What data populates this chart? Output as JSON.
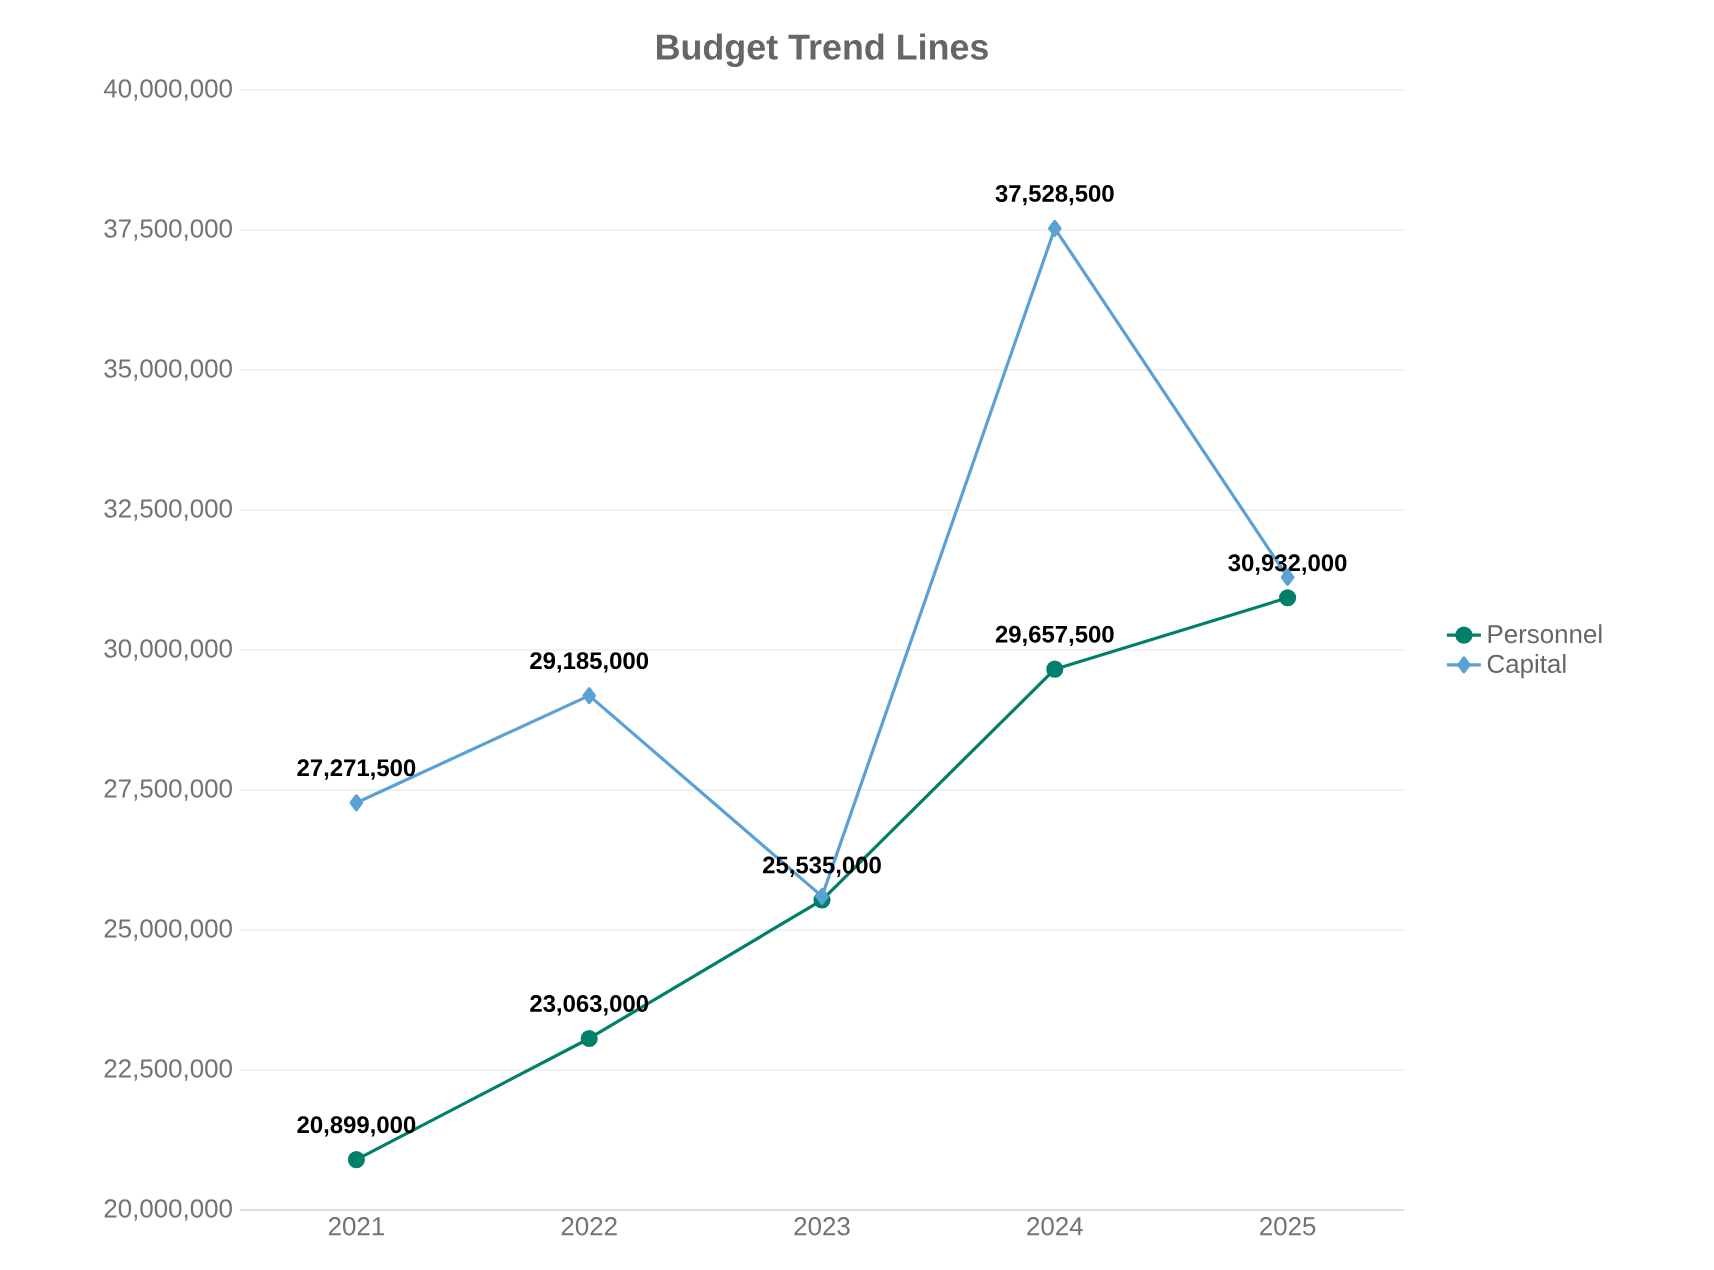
{
  "chart_data": {
    "type": "line",
    "title": "Budget Trend Lines",
    "categories": [
      "2021",
      "2022",
      "2023",
      "2024",
      "2025"
    ],
    "series": [
      {
        "name": "Personnel",
        "color": "#00806a",
        "marker": "circle",
        "values": [
          20899000,
          23063000,
          25535000,
          29657500,
          30932000
        ],
        "value_labels": [
          "20,899,000",
          "23,063,000",
          "25,535,000",
          "29,657,500",
          "30,932,000"
        ]
      },
      {
        "name": "Capital",
        "color": "#5aa2d6",
        "marker": "diamond",
        "values": [
          27271500,
          29185000,
          25600000,
          37528500,
          31300000
        ],
        "value_labels": [
          "27,271,500",
          "29,185,000",
          null,
          "37,528,500",
          null
        ]
      }
    ],
    "ylim": [
      20000000,
      40000000
    ],
    "yticks": [
      {
        "value": 20000000,
        "label": "20,000,000"
      },
      {
        "value": 22500000,
        "label": "22,500,000"
      },
      {
        "value": 25000000,
        "label": "25,000,000"
      },
      {
        "value": 27500000,
        "label": "27,500,000"
      },
      {
        "value": 30000000,
        "label": "30,000,000"
      },
      {
        "value": 32500000,
        "label": "32,500,000"
      },
      {
        "value": 35000000,
        "label": "35,000,000"
      },
      {
        "value": 37500000,
        "label": "37,500,000"
      },
      {
        "value": 40000000,
        "label": "40,000,000"
      }
    ],
    "grid": "y",
    "legend": "right",
    "line_style": "solid"
  }
}
